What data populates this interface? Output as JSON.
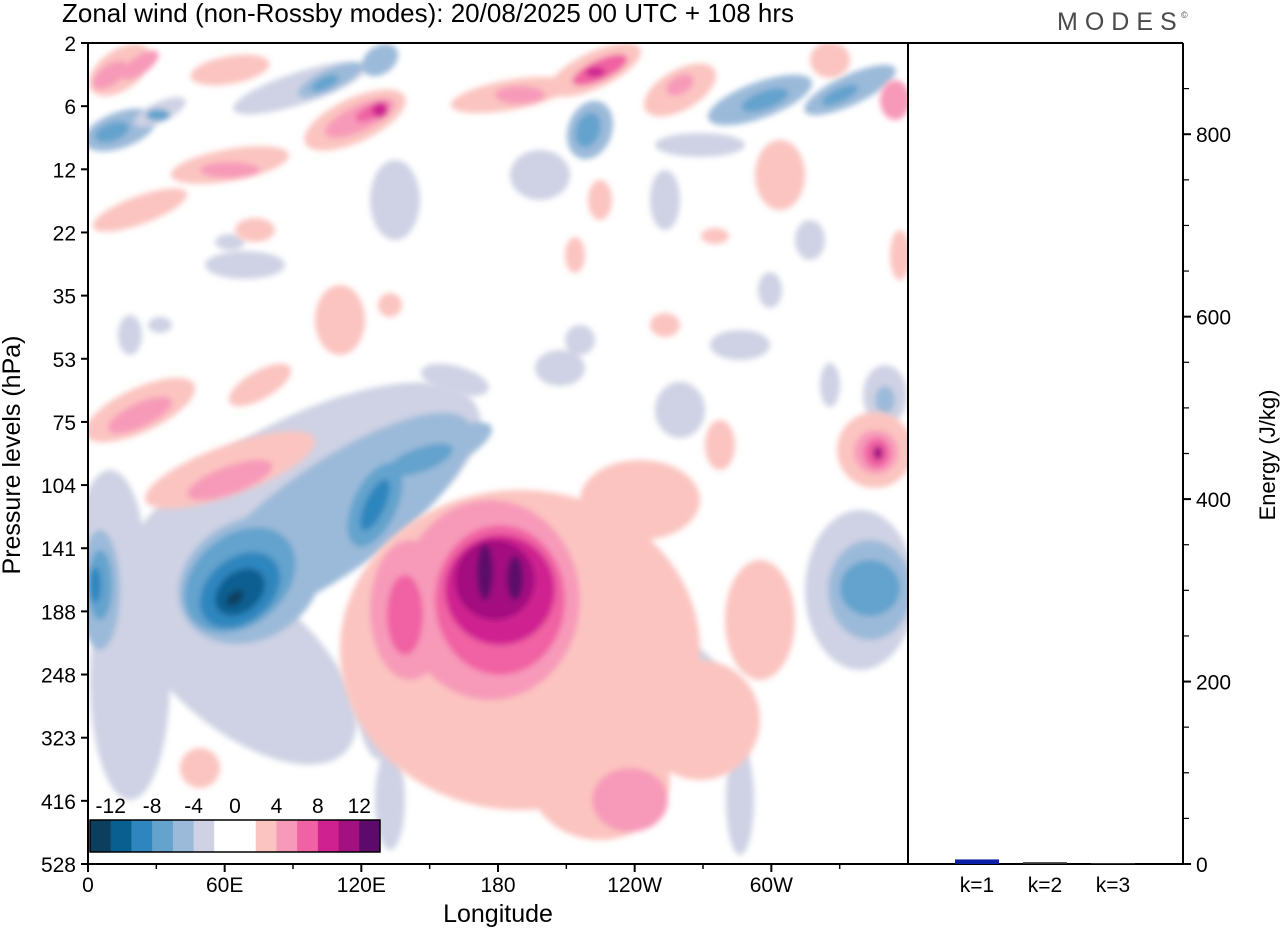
{
  "header": {
    "title": "Zonal wind (non-Rossby modes):  20/08/2025  00 UTC  + 108 hrs",
    "logo": "MODES",
    "logo_mark": "©"
  },
  "chart_data": [
    {
      "type": "heatmap",
      "title": "Zonal wind (non-Rossby modes):  20/08/2025  00 UTC  + 108 hrs",
      "xlabel": "Longitude",
      "ylabel": "Pressure levels (hPa)",
      "x_ticks": [
        "0",
        "60E",
        "120E",
        "180",
        "120W",
        "60W"
      ],
      "x_tick_values": [
        0,
        60,
        120,
        180,
        240,
        300
      ],
      "xlim": [
        0,
        360
      ],
      "y_ticks": [
        "2",
        "6",
        "12",
        "22",
        "35",
        "53",
        "75",
        "104",
        "141",
        "188",
        "248",
        "323",
        "416",
        "528"
      ],
      "colorbar": {
        "labels": [
          "-12",
          "-8",
          "-4",
          "0",
          "4",
          "8",
          "12"
        ],
        "levels": [
          -14,
          -12,
          -10,
          -8,
          -6,
          -4,
          -2,
          0,
          2,
          4,
          6,
          8,
          10,
          12,
          14
        ],
        "colors": [
          "#0c3f5e",
          "#0a5f91",
          "#2f86be",
          "#63a3cd",
          "#9bbad9",
          "#cfd2e4",
          "#ffffff",
          "#ffffff",
          "#fbc4c0",
          "#f79ab9",
          "#f062a3",
          "#cf2290",
          "#a31080",
          "#5c0a6b"
        ]
      },
      "features": [
        {
          "lon": 68,
          "level": "188",
          "value": -13
        },
        {
          "lon": 125,
          "level": "141",
          "value": -10
        },
        {
          "lon": 10,
          "level": "188",
          "value": -9
        },
        {
          "lon": 345,
          "level": "188",
          "value": -8
        },
        {
          "lon": 176,
          "level": "141",
          "value": 13
        },
        {
          "lon": 190,
          "level": "141",
          "value": 12
        },
        {
          "lon": 138,
          "level": "188",
          "value": 8
        },
        {
          "lon": 348,
          "level": "104",
          "value": 11
        },
        {
          "lon": 218,
          "level": "416",
          "value": 5
        }
      ]
    },
    {
      "type": "bar",
      "categories": [
        "k=1",
        "k=2",
        "k=3"
      ],
      "values": [
        5,
        2,
        1
      ],
      "ylabel": "Energy (J/kg)",
      "ylim": [
        0,
        900
      ],
      "y_ticks": [
        0,
        200,
        400,
        600,
        800
      ],
      "bar_color": "#0a1ea8"
    }
  ]
}
